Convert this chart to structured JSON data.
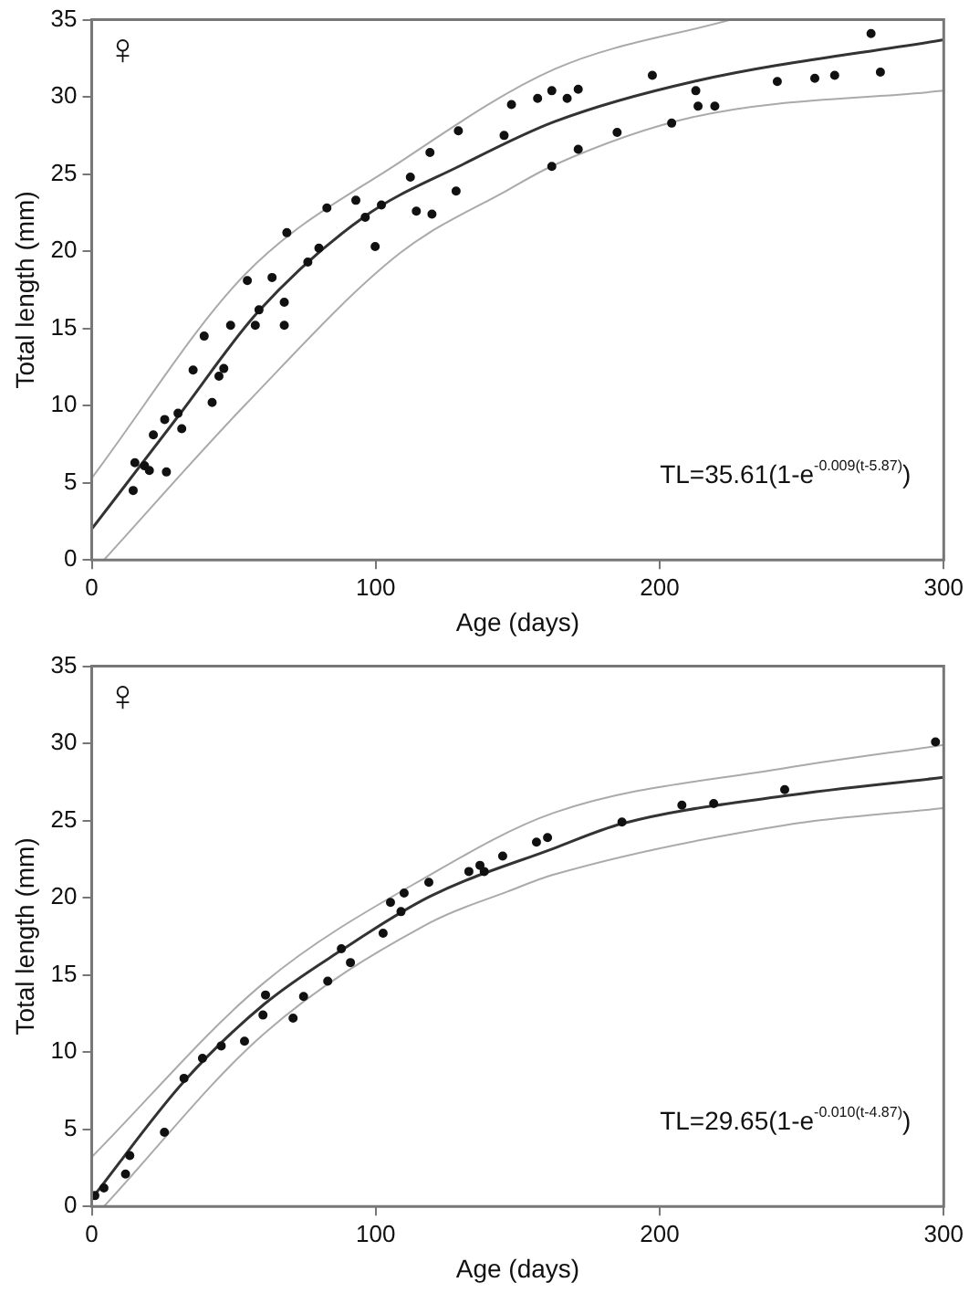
{
  "chart_data": [
    {
      "type": "scatter",
      "xlabel": "Age (days)",
      "ylabel": "Total length (mm)",
      "xlim": [
        0,
        300
      ],
      "xticks": [
        0,
        100,
        200,
        300
      ],
      "ylim": [
        0,
        35
      ],
      "yticks": [
        0,
        5,
        10,
        15,
        20,
        25,
        30,
        35
      ],
      "grid": false,
      "legend": false,
      "marker": "circle",
      "annotations": [
        "♀",
        "TL=35.61(1-e$^{-0.009(t-5.87)}$)"
      ],
      "series": [
        {
          "type": "scatter",
          "color": "#111111",
          "x": [
            14.6,
            15.2,
            18.6,
            20.3,
            21.7,
            25.7,
            26.3,
            30.4,
            31.7,
            35.7,
            39.6,
            42.4,
            44.8,
            46.5,
            48.9,
            54.8,
            57.6,
            58.9,
            63.5,
            67.8,
            67.8,
            68.7,
            76.1,
            80,
            82.8,
            93,
            96.3,
            99.8,
            102,
            112.2,
            114.3,
            119.1,
            119.8,
            128.3,
            129.1,
            145.2,
            147.8,
            157,
            162,
            162,
            167.4,
            171.3,
            171.3,
            185,
            197.4,
            204.2,
            212.7,
            213.5,
            219.4,
            241.4,
            254.6,
            261.6,
            274.4,
            277.7
          ],
          "values": [
            4.5,
            6.3,
            6.1,
            5.8,
            8.1,
            9.1,
            5.7,
            9.5,
            8.5,
            12.3,
            14.5,
            10.2,
            11.9,
            12.4,
            15.2,
            18.1,
            15.2,
            16.2,
            18.3,
            16.7,
            15.2,
            21.2,
            19.3,
            20.2,
            22.8,
            23.3,
            22.2,
            20.3,
            23.0,
            24.8,
            22.6,
            26.4,
            22.4,
            23.9,
            27.8,
            27.5,
            29.5,
            29.9,
            30.4,
            25.5,
            29.9,
            30.5,
            26.6,
            27.7,
            31.4,
            28.3,
            30.4,
            29.4,
            29.4,
            31.0,
            31.2,
            31.4,
            34.1,
            31.6
          ]
        },
        {
          "type": "line",
          "color": "#333333",
          "marker": "none",
          "x": [
            0,
            30.4,
            58.7,
            95.7,
            130.4,
            163,
            212,
            300
          ],
          "values": [
            2.0,
            9.3,
            16.1,
            22.2,
            25.6,
            28.4,
            31.0,
            33.7
          ]
        },
        {
          "type": "line",
          "color": "#aaaaaa",
          "marker": "none",
          "x": [
            0,
            54,
            108.7,
            163,
            225
          ],
          "values": [
            5.3,
            18.5,
            25.8,
            31.8,
            35
          ]
        },
        {
          "type": "line",
          "color": "#aaaaaa",
          "marker": "none",
          "x": [
            4.3,
            54.3,
            108.7,
            146.8,
            163,
            212,
            300
          ],
          "values": [
            0,
            10.1,
            19.9,
            24.0,
            25.6,
            28.7,
            30.4
          ]
        }
      ]
    },
    {
      "type": "scatter",
      "xlabel": "Age (days)",
      "ylabel": "Total length (mm)",
      "xlim": [
        0,
        300
      ],
      "xticks": [
        0,
        100,
        200,
        300
      ],
      "ylim": [
        0,
        35
      ],
      "yticks": [
        0,
        5,
        10,
        15,
        20,
        25,
        30,
        35
      ],
      "grid": false,
      "legend": false,
      "marker": "circle",
      "annotations": [
        "♀",
        "TL=29.65(1-e$^{-0.010(t-4.87)}$)"
      ],
      "series": [
        {
          "type": "scatter",
          "color": "#111111",
          "x": [
            1.1,
            4.3,
            11.9,
            13.4,
            25.6,
            32.5,
            39,
            45.6,
            53.8,
            60.3,
            61.2,
            70.9,
            74.6,
            83.1,
            87.9,
            91.1,
            102.6,
            105.2,
            108.9,
            110,
            118.7,
            132.8,
            136.7,
            138.2,
            144.7,
            156.6,
            160.5,
            186.7,
            207.8,
            219,
            244,
            297.1
          ],
          "values": [
            0.7,
            1.2,
            2.1,
            3.3,
            4.8,
            8.3,
            9.6,
            10.4,
            10.7,
            12.4,
            13.7,
            12.2,
            13.6,
            14.6,
            16.7,
            15.8,
            17.7,
            19.7,
            19.1,
            20.3,
            21.0,
            21.7,
            22.1,
            21.7,
            22.7,
            23.6,
            23.9,
            24.9,
            26.0,
            26.1,
            27.0,
            30.1
          ]
        },
        {
          "type": "line",
          "color": "#333333",
          "marker": "none",
          "x": [
            0,
            32.5,
            60.7,
            87.9,
            119.3,
            162.7,
            186.7,
            244,
            300
          ],
          "values": [
            0.5,
            8.1,
            13.1,
            16.6,
            20.1,
            23.2,
            24.8,
            26.6,
            27.8
          ]
        },
        {
          "type": "line",
          "color": "#aaaaaa",
          "marker": "none",
          "x": [
            0,
            60.7,
            119.3,
            162.7,
            244,
            300
          ],
          "values": [
            3.2,
            14.5,
            21.5,
            25.5,
            28.4,
            29.9
          ]
        },
        {
          "type": "line",
          "color": "#aaaaaa",
          "marker": "none",
          "x": [
            4.3,
            60.7,
            119.3,
            146.4,
            162.7,
            244,
            300
          ],
          "values": [
            0,
            11.2,
            18.4,
            20.4,
            21.5,
            24.7,
            25.8
          ]
        }
      ]
    }
  ]
}
